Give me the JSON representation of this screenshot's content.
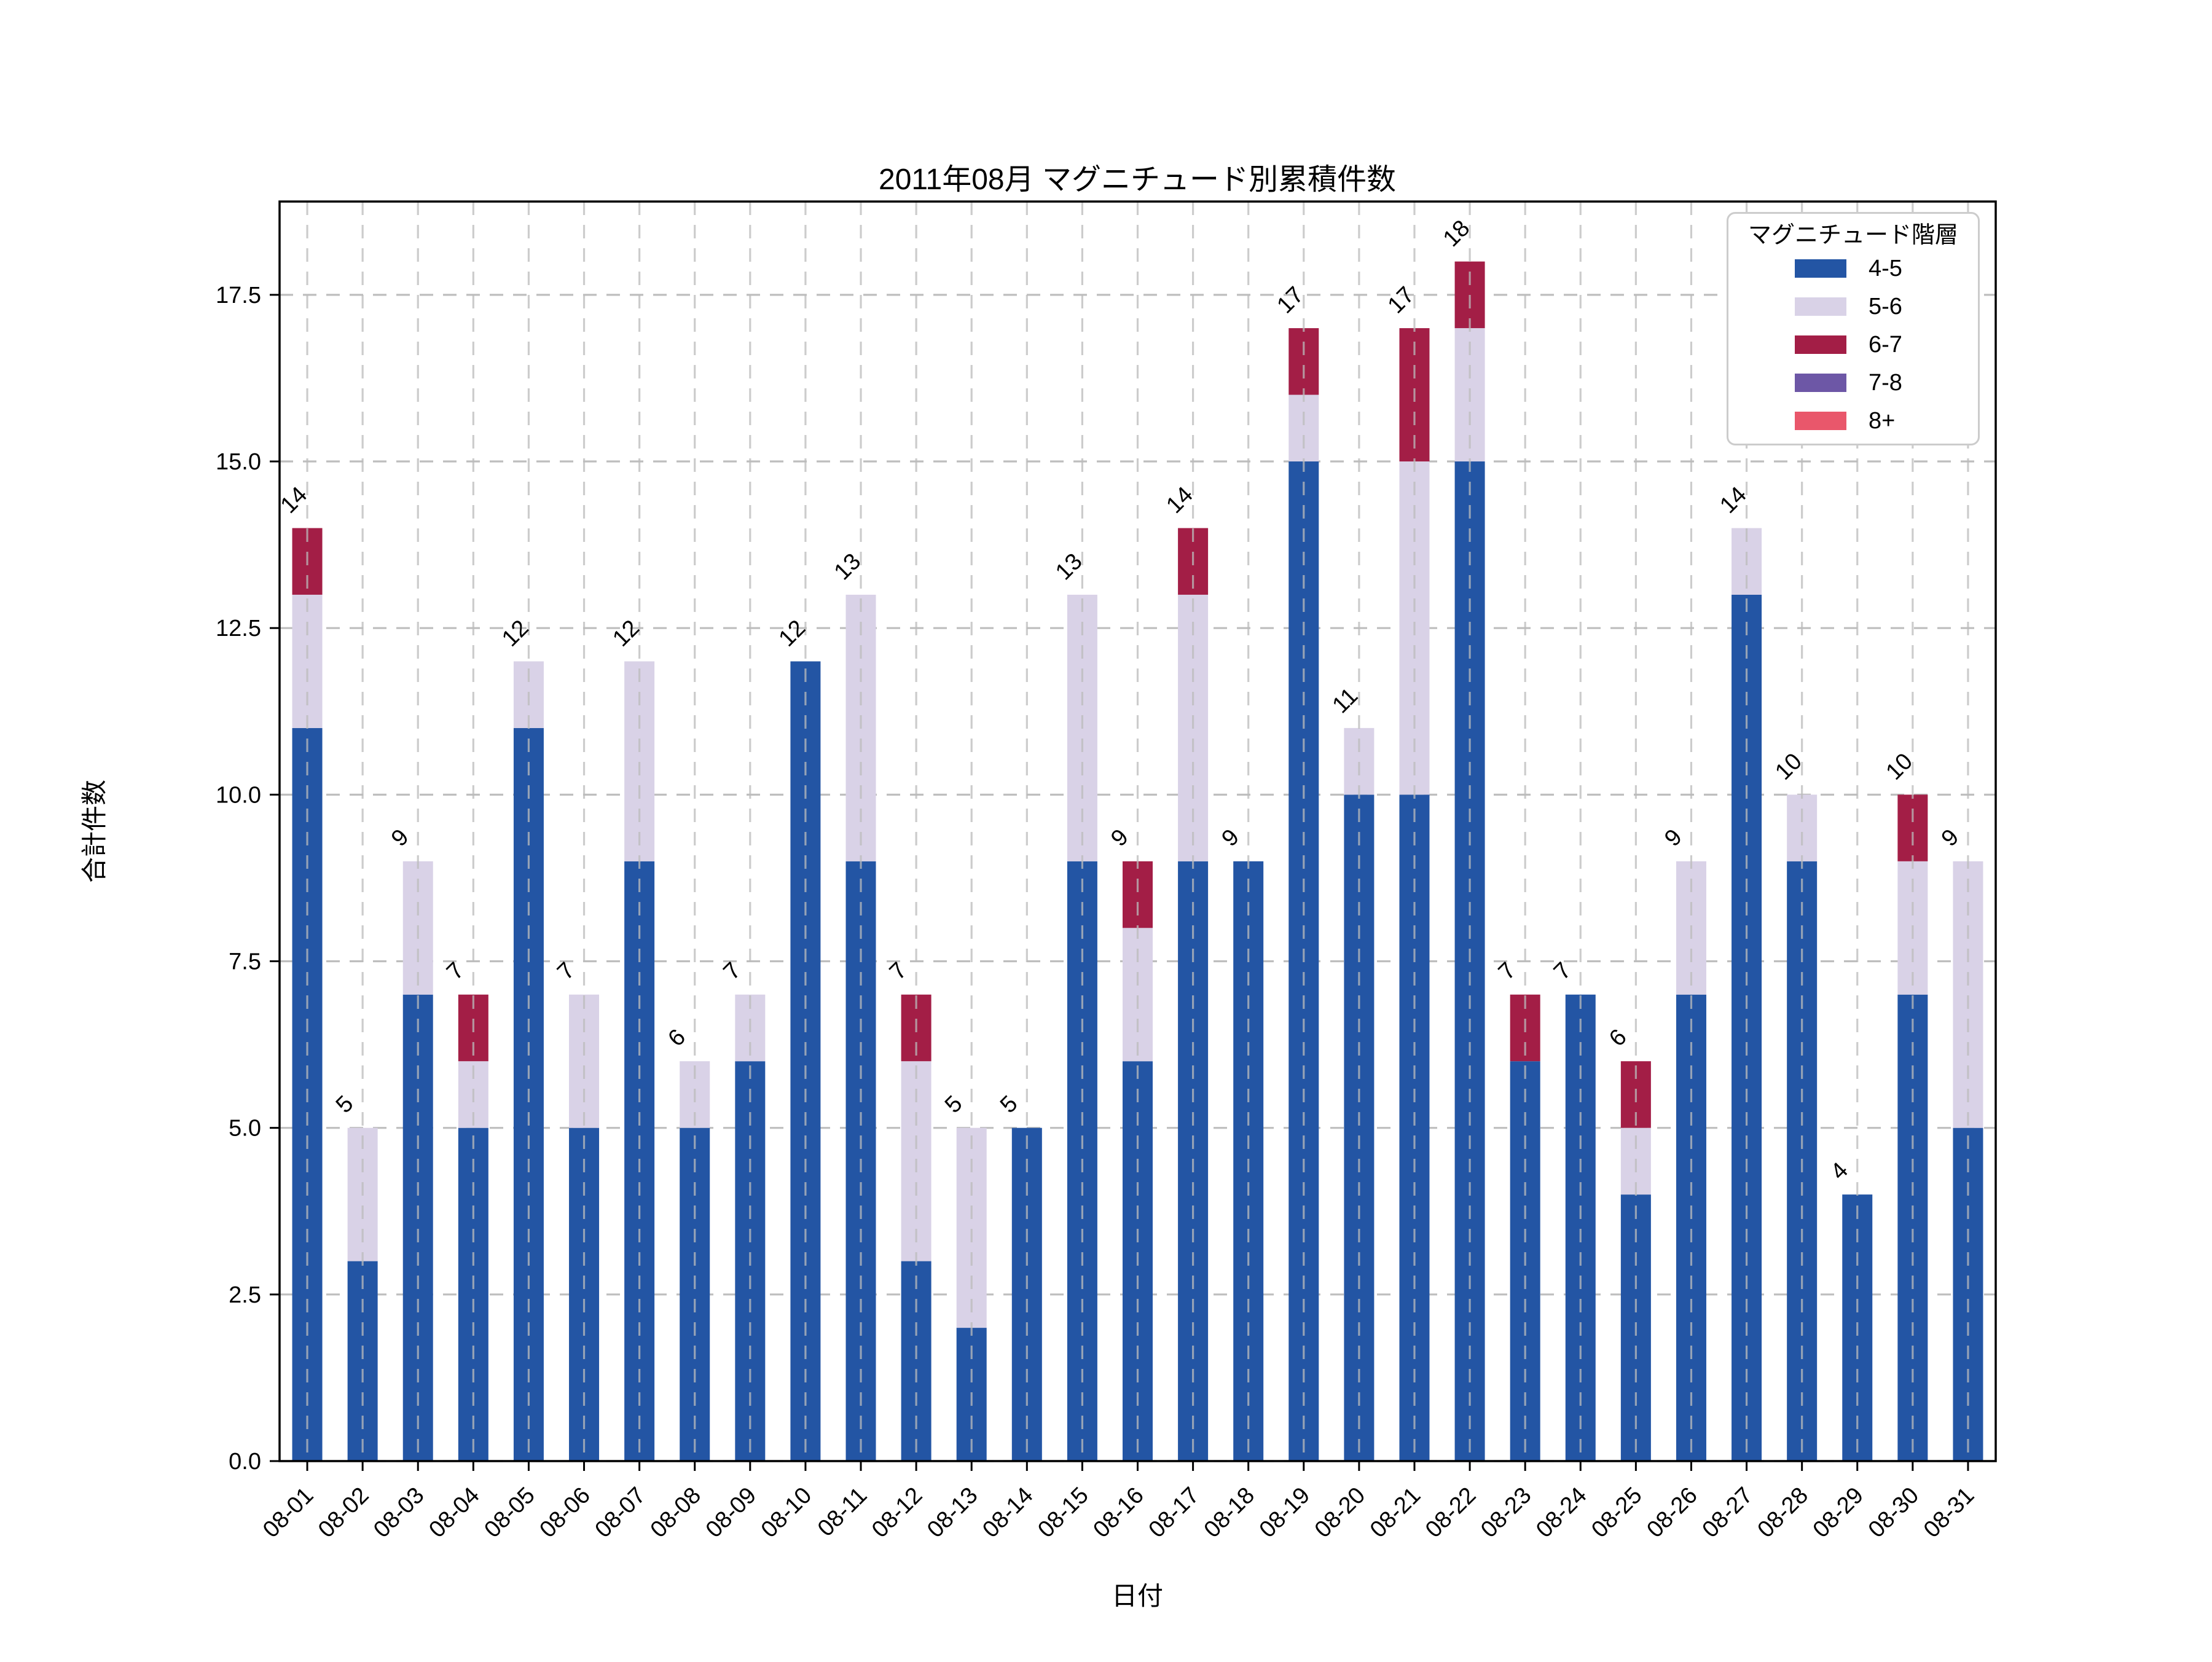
{
  "chart_data": {
    "type": "bar",
    "stacked": true,
    "title": "2011年08月 マグニチュード別累積件数",
    "xlabel": "日付",
    "ylabel": "合計件数",
    "legend_title": "マグニチュード階層",
    "legend_position": "upper right",
    "grid": true,
    "ylim": [
      0,
      18.9
    ],
    "ytick_labels": [
      "0.0",
      "2.5",
      "5.0",
      "7.5",
      "10.0",
      "12.5",
      "15.0",
      "17.5"
    ],
    "categories": [
      "08-01",
      "08-02",
      "08-03",
      "08-04",
      "08-05",
      "08-06",
      "08-07",
      "08-08",
      "08-09",
      "08-10",
      "08-11",
      "08-12",
      "08-13",
      "08-14",
      "08-15",
      "08-16",
      "08-17",
      "08-18",
      "08-19",
      "08-20",
      "08-21",
      "08-22",
      "08-23",
      "08-24",
      "08-25",
      "08-26",
      "08-27",
      "08-28",
      "08-29",
      "08-30",
      "08-31"
    ],
    "series": [
      {
        "name": "4-5",
        "color": "#2355a4",
        "values": [
          11,
          3,
          7,
          5,
          11,
          5,
          9,
          5,
          6,
          12,
          9,
          3,
          2,
          5,
          9,
          6,
          9,
          9,
          15,
          10,
          10,
          15,
          6,
          7,
          4,
          7,
          13,
          9,
          4,
          7,
          5
        ]
      },
      {
        "name": "5-6",
        "color": "#d9d2e7",
        "values": [
          2,
          2,
          2,
          1,
          1,
          2,
          3,
          1,
          1,
          0,
          4,
          3,
          3,
          0,
          4,
          2,
          4,
          0,
          1,
          1,
          5,
          2,
          0,
          0,
          1,
          2,
          1,
          1,
          0,
          2,
          4
        ]
      },
      {
        "name": "6-7",
        "color": "#a31e46",
        "values": [
          1,
          0,
          0,
          1,
          0,
          0,
          0,
          0,
          0,
          0,
          0,
          1,
          0,
          0,
          0,
          1,
          1,
          0,
          1,
          0,
          2,
          1,
          1,
          0,
          1,
          0,
          0,
          0,
          0,
          1,
          0
        ]
      },
      {
        "name": "7-8",
        "color": "#6d57a6",
        "values": [
          0,
          0,
          0,
          0,
          0,
          0,
          0,
          0,
          0,
          0,
          0,
          0,
          0,
          0,
          0,
          0,
          0,
          0,
          0,
          0,
          0,
          0,
          0,
          0,
          0,
          0,
          0,
          0,
          0,
          0,
          0
        ]
      },
      {
        "name": "8+",
        "color": "#e9576b",
        "values": [
          0,
          0,
          0,
          0,
          0,
          0,
          0,
          0,
          0,
          0,
          0,
          0,
          0,
          0,
          0,
          0,
          0,
          0,
          0,
          0,
          0,
          0,
          0,
          0,
          0,
          0,
          0,
          0,
          0,
          0,
          0
        ]
      }
    ],
    "totals": [
      14,
      5,
      9,
      7,
      12,
      7,
      12,
      6,
      7,
      12,
      13,
      7,
      5,
      5,
      13,
      9,
      14,
      9,
      17,
      11,
      17,
      18,
      7,
      7,
      6,
      9,
      14,
      10,
      4,
      10,
      9
    ],
    "colors": {
      "grid": "#b3b3b3",
      "spine": "#000000",
      "background": "#ffffff"
    }
  }
}
